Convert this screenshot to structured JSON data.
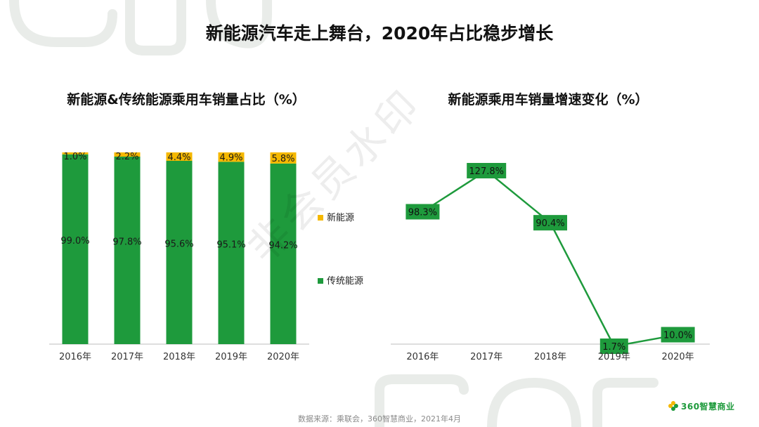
{
  "page": {
    "title": "新能源汽车走上舞台，2020年占比稳步增长",
    "source": "数据来源：乘联会，360智慧商业，2021年4月",
    "brand": "360智慧商业",
    "watermark": "非会员水印",
    "colors": {
      "green": "#1e9a3c",
      "yellow": "#f5b800",
      "deco": "#e9ece9"
    }
  },
  "chart_data": [
    {
      "type": "bar",
      "stacked": true,
      "title": "新能源&传统能源乘用车销量占比（%）",
      "categories": [
        "2016年",
        "2017年",
        "2018年",
        "2019年",
        "2020年"
      ],
      "series": [
        {
          "name": "传统能源",
          "values": [
            99.0,
            97.8,
            95.6,
            95.1,
            94.2
          ],
          "labels": [
            "99.0%",
            "97.8%",
            "95.6%",
            "95.1%",
            "94.2%"
          ],
          "color": "#1e9a3c"
        },
        {
          "name": "新能源",
          "values": [
            1.0,
            2.2,
            4.4,
            4.9,
            5.8
          ],
          "labels": [
            "1.0%",
            "2.2%",
            "4.4%",
            "4.9%",
            "5.8%"
          ],
          "color": "#f5b800"
        }
      ],
      "ylim": [
        0,
        100
      ],
      "legend": "right"
    },
    {
      "type": "line",
      "title": "新能源乘用车销量增速变化（%）",
      "categories": [
        "2016年",
        "2017年",
        "2018年",
        "2019年",
        "2020年"
      ],
      "series": [
        {
          "values": [
            98.3,
            127.8,
            90.4,
            1.7,
            10.0
          ],
          "labels": [
            "98.3%",
            "127.8%",
            "90.4%",
            "1.7%",
            "10.0%"
          ],
          "color": "#1e9a3c"
        }
      ],
      "ylim": [
        0,
        130
      ]
    }
  ]
}
